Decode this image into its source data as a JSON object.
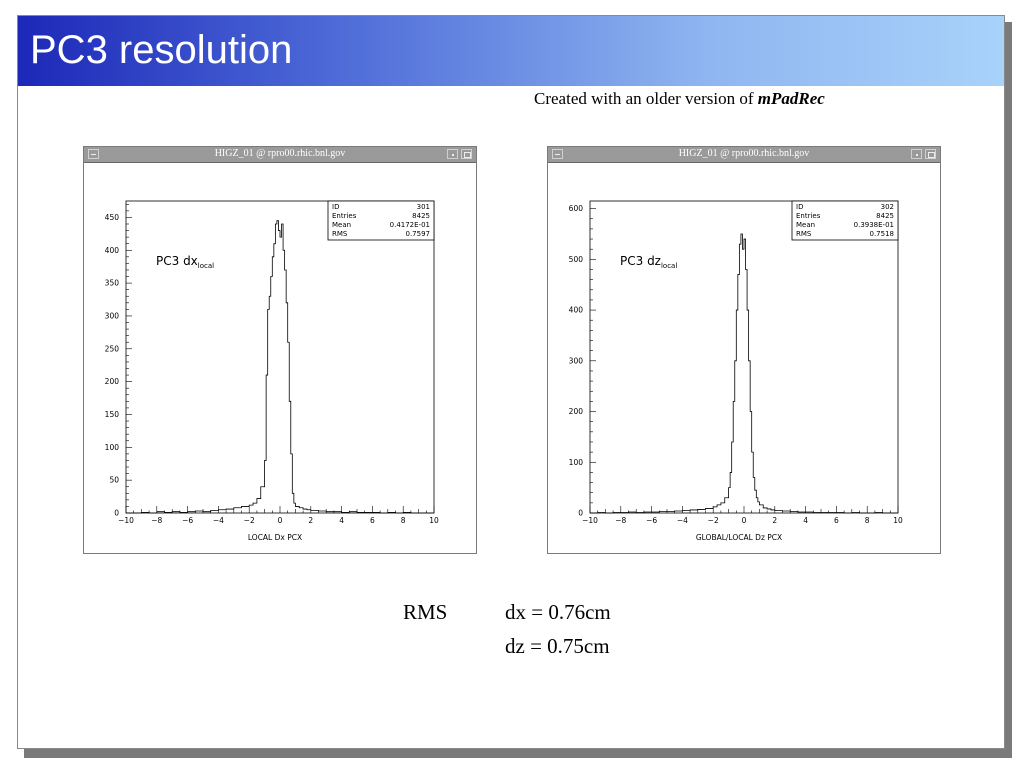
{
  "slide": {
    "title": "PC3 resolution",
    "subtitle_prefix": "Created with an older version of ",
    "subtitle_emph": "mPadRec"
  },
  "results": {
    "rms_label": "RMS",
    "dx": "dx = 0.76cm",
    "dz": "dz = 0.75cm"
  },
  "colors": {
    "title_gradient_start": "#1c28b8",
    "title_gradient_end": "#a8d2fa",
    "window_titlebar": "#9a9a9a"
  },
  "chart_data": [
    {
      "type": "histogram",
      "window_title": "HIGZ_01 @ rpro00.rhic.bnl.gov",
      "annotation": "PC3 dx",
      "annotation_subscript": "local",
      "xlabel": "LOCAL Dx PCX",
      "xlim": [
        -10,
        10
      ],
      "ylim": [
        0,
        475
      ],
      "xticks": [
        -10,
        -8,
        -6,
        -4,
        -2,
        0,
        2,
        4,
        6,
        8,
        10
      ],
      "yticks": [
        0,
        50,
        100,
        150,
        200,
        250,
        300,
        350,
        400,
        450
      ],
      "stats": [
        {
          "label": "ID",
          "value": "301"
        },
        {
          "label": "Entries",
          "value": "8425"
        },
        {
          "label": "Mean",
          "value": "0.4172E-01"
        },
        {
          "label": "RMS",
          "value": "0.7597"
        }
      ],
      "x": [
        -10,
        -9.5,
        -9,
        -8.5,
        -8,
        -7.5,
        -7,
        -6.5,
        -6,
        -5.5,
        -5,
        -4.5,
        -4,
        -3.5,
        -3,
        -2.5,
        -2,
        -1.75,
        -1.5,
        -1.25,
        -1.0,
        -0.9,
        -0.8,
        -0.7,
        -0.6,
        -0.5,
        -0.4,
        -0.3,
        -0.2,
        -0.1,
        0.0,
        0.1,
        0.2,
        0.3,
        0.4,
        0.5,
        0.6,
        0.7,
        0.8,
        0.9,
        1.0,
        1.25,
        1.5,
        1.75,
        2,
        2.5,
        3,
        3.5,
        4,
        4.5,
        5,
        5.5,
        6,
        6.5,
        7,
        7.5,
        8,
        8.5,
        9,
        9.5
      ],
      "values": [
        0,
        0,
        1,
        0,
        2,
        1,
        2,
        1,
        2,
        3,
        2,
        4,
        5,
        6,
        8,
        10,
        12,
        15,
        22,
        40,
        80,
        210,
        310,
        330,
        360,
        390,
        410,
        440,
        445,
        430,
        420,
        440,
        400,
        370,
        320,
        260,
        170,
        90,
        30,
        15,
        10,
        8,
        6,
        5,
        4,
        3,
        2,
        2,
        1,
        2,
        1,
        1,
        1,
        0,
        1,
        0,
        1,
        0,
        0,
        0
      ]
    },
    {
      "type": "histogram",
      "window_title": "HIGZ_01 @ rpro00.rhic.bnl.gov",
      "annotation": "PC3 dz",
      "annotation_subscript": "local",
      "xlabel": "GLOBAL/LOCAL Dz PCX",
      "xlim": [
        -10,
        10
      ],
      "ylim": [
        0,
        615
      ],
      "xticks": [
        -10,
        -8,
        -6,
        -4,
        -2,
        0,
        2,
        4,
        6,
        8,
        10
      ],
      "yticks": [
        0,
        100,
        200,
        300,
        400,
        500,
        600
      ],
      "stats": [
        {
          "label": "ID",
          "value": "302"
        },
        {
          "label": "Entries",
          "value": "8425"
        },
        {
          "label": "Mean",
          "value": "0.3938E-01"
        },
        {
          "label": "RMS",
          "value": "0.7518"
        }
      ],
      "x": [
        -10,
        -9.5,
        -9,
        -8.5,
        -8,
        -7.5,
        -7,
        -6.5,
        -6,
        -5.5,
        -5,
        -4.5,
        -4,
        -3.5,
        -3,
        -2.5,
        -2,
        -1.75,
        -1.5,
        -1.25,
        -1.0,
        -0.9,
        -0.8,
        -0.7,
        -0.6,
        -0.5,
        -0.4,
        -0.3,
        -0.2,
        -0.1,
        0.0,
        0.1,
        0.2,
        0.3,
        0.4,
        0.5,
        0.6,
        0.7,
        0.8,
        0.9,
        1.0,
        1.25,
        1.5,
        1.75,
        2,
        2.5,
        3,
        3.5,
        4,
        4.5,
        5,
        5.5,
        6,
        6.5,
        7,
        7.5,
        8,
        8.5,
        9,
        9.5
      ],
      "values": [
        0,
        1,
        0,
        1,
        1,
        2,
        1,
        2,
        2,
        3,
        3,
        4,
        5,
        6,
        7,
        9,
        12,
        16,
        20,
        30,
        50,
        80,
        140,
        220,
        300,
        400,
        470,
        530,
        550,
        520,
        540,
        480,
        400,
        300,
        200,
        120,
        70,
        45,
        30,
        22,
        16,
        10,
        8,
        6,
        5,
        4,
        3,
        2,
        2,
        1,
        1,
        1,
        1,
        0,
        1,
        0,
        0,
        1,
        0,
        0
      ]
    }
  ]
}
